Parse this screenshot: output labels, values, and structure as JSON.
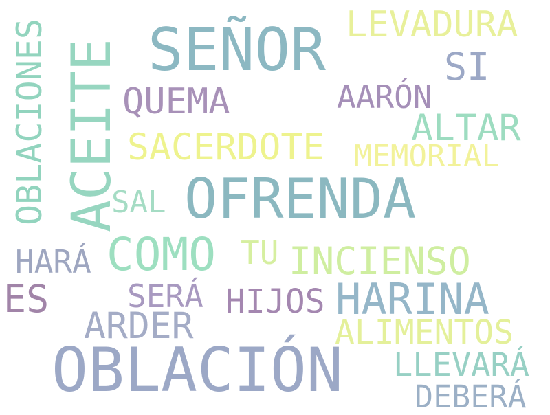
{
  "words": [
    {
      "text": "OFRENDA",
      "color": "#8bb8c0"
    },
    {
      "text": "OBLACIÓN",
      "color": "#9ca8c6"
    },
    {
      "text": "SEÑOR",
      "color": "#8cb8c2"
    },
    {
      "text": "ACEITE",
      "color": "#97d6c0"
    },
    {
      "text": "COMO",
      "color": "#9ddfc0"
    },
    {
      "text": "HARINA",
      "color": "#95b6c8"
    },
    {
      "text": "LEVADURA",
      "color": "#e8f09a"
    },
    {
      "text": "OBLACIONES",
      "color": "#92d4be"
    },
    {
      "text": "QUEMA",
      "color": "#a891b8"
    },
    {
      "text": "SACERDOTE",
      "color": "#eef38e"
    },
    {
      "text": "ALTAR",
      "color": "#9ddcc0"
    },
    {
      "text": "INCIENSO",
      "color": "#cfeea0"
    },
    {
      "text": "SI",
      "color": "#9ca8c6"
    },
    {
      "text": "AARÓN",
      "color": "#a58fb8"
    },
    {
      "text": "MEMORIAL",
      "color": "#f2f29a"
    },
    {
      "text": "SAL",
      "color": "#a5dcc4"
    },
    {
      "text": "TU",
      "color": "#d6efa0"
    },
    {
      "text": "HARÁ",
      "color": "#9ea6c0"
    },
    {
      "text": "ES",
      "color": "#a184a8"
    },
    {
      "text": "SERÁ",
      "color": "#a899c0"
    },
    {
      "text": "HIJOS",
      "color": "#a487b0"
    },
    {
      "text": "ARDER",
      "color": "#a4acc6"
    },
    {
      "text": "ALIMENTOS",
      "color": "#e4f09a"
    },
    {
      "text": "LLEVARÁ",
      "color": "#97d0c4"
    },
    {
      "text": "DEBERÁ",
      "color": "#9cb0c6"
    }
  ]
}
